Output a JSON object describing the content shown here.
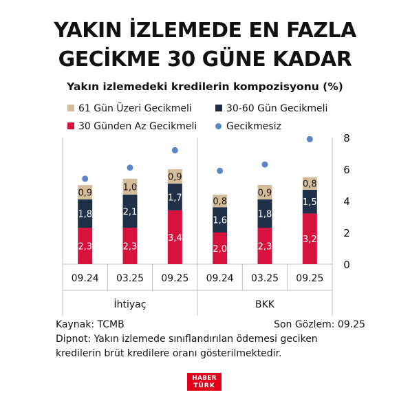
{
  "title": {
    "line1": "YAKIN İZLEMEDE EN FAZLA",
    "line2": "GECİKME 30 GÜNE KADAR"
  },
  "subtitle": "Yakın izlemedeki kredilerin kompozisyonu (%)",
  "legend": {
    "items": [
      {
        "label": "61 Gün Üzeri Gecikmeli",
        "color": "#d4bd9a",
        "marker": "square"
      },
      {
        "label": "30-60 Gün Gecikmeli",
        "color": "#1f3048",
        "marker": "square"
      },
      {
        "label": "30 Günden Az Gecikmeli",
        "color": "#d6123d",
        "marker": "square"
      },
      {
        "label": "Gecikmesiz",
        "color": "#5b86c4",
        "marker": "dot"
      }
    ]
  },
  "chart_data": {
    "type": "bar",
    "stacked": true,
    "categories": [
      "09.24",
      "03.25",
      "09.25",
      "09.24",
      "03.25",
      "09.25"
    ],
    "groups": [
      {
        "label": "İhtiyaç",
        "span": [
          0,
          2
        ]
      },
      {
        "label": "BKK",
        "span": [
          3,
          5
        ]
      }
    ],
    "series": [
      {
        "name": "30 Günden Az Gecikmeli",
        "color": "#d6123d",
        "values": [
          2.3,
          2.3,
          3.4,
          2.0,
          2.3,
          3.2
        ],
        "labels": [
          "2,3",
          "2,3",
          "3,4",
          "2,0",
          "2,3",
          "3,2"
        ],
        "label_color": "#ffffff"
      },
      {
        "name": "30-60 Gün Gecikmeli",
        "color": "#1f3048",
        "values": [
          1.8,
          2.1,
          1.7,
          1.6,
          1.8,
          1.5
        ],
        "labels": [
          "1,8",
          "2,1",
          "1,7",
          "1,6",
          "1,8",
          "1,5"
        ],
        "label_color": "#ffffff"
      },
      {
        "name": "61 Gün Üzeri Gecikmeli",
        "color": "#d4bd9a",
        "values": [
          0.9,
          1.0,
          0.9,
          0.8,
          0.9,
          0.8
        ],
        "labels": [
          "0,9",
          "1,0",
          "0,9",
          "0,8",
          "0,9",
          "0,8"
        ],
        "label_color": "#111111"
      }
    ],
    "dots": {
      "name": "Gecikmesiz",
      "color": "#5b86c4",
      "values": [
        5.4,
        6.1,
        7.2,
        5.9,
        6.3,
        7.9
      ]
    },
    "y_axis": {
      "side": "right",
      "min": 0,
      "max": 8,
      "ticks": [
        0,
        2,
        4,
        6,
        8
      ],
      "tick_labels": [
        "0",
        "2",
        "4",
        "6",
        "8"
      ]
    },
    "grid": false,
    "legend_position": "top"
  },
  "footer": {
    "source": "Kaynak: TCMB",
    "last_obs": "Son Gözlem: 09.25",
    "note_line1": "Dipnot: Yakın izlemede sınıflandırılan ödemesi geciken",
    "note_line2": "kredilerin brüt kredilere oranı gösterilmektedir."
  },
  "logo": {
    "line1": "HABER",
    "line2": "TÜRK",
    "color": "#e3001b"
  }
}
